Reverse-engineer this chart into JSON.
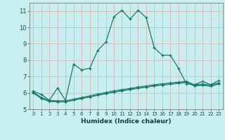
{
  "xlabel": "Humidex (Indice chaleur)",
  "background_color": "#c8eef0",
  "grid_color": "#d8b8b8",
  "line_color": "#1a7a6a",
  "x_values": [
    0,
    1,
    2,
    3,
    4,
    5,
    6,
    7,
    8,
    9,
    10,
    11,
    12,
    13,
    14,
    15,
    16,
    17,
    18,
    19,
    20,
    21,
    22,
    23
  ],
  "line1_y": [
    6.1,
    5.9,
    5.55,
    6.3,
    5.55,
    7.75,
    7.4,
    7.5,
    8.6,
    9.1,
    10.65,
    11.05,
    10.5,
    11.05,
    10.6,
    8.75,
    8.3,
    8.3,
    7.5,
    6.55,
    6.5,
    6.7,
    6.5,
    6.75
  ],
  "line2_y": [
    6.05,
    5.72,
    5.55,
    5.52,
    5.52,
    5.62,
    5.72,
    5.82,
    5.93,
    6.03,
    6.13,
    6.2,
    6.28,
    6.36,
    6.43,
    6.5,
    6.56,
    6.61,
    6.66,
    6.71,
    6.5,
    6.55,
    6.48,
    6.62
  ],
  "line3_y": [
    6.02,
    5.68,
    5.5,
    5.48,
    5.48,
    5.58,
    5.68,
    5.78,
    5.88,
    5.98,
    6.08,
    6.15,
    6.23,
    6.31,
    6.38,
    6.45,
    6.51,
    6.56,
    6.61,
    6.66,
    6.45,
    6.5,
    6.43,
    6.57
  ],
  "line4_y": [
    5.98,
    5.64,
    5.47,
    5.44,
    5.44,
    5.54,
    5.64,
    5.74,
    5.84,
    5.94,
    6.04,
    6.11,
    6.19,
    6.27,
    6.34,
    6.41,
    6.47,
    6.52,
    6.57,
    6.62,
    6.41,
    6.46,
    6.39,
    6.53
  ],
  "ylim": [
    5.0,
    11.5
  ],
  "yticks": [
    5,
    6,
    7,
    8,
    9,
    10,
    11
  ],
  "xlim": [
    -0.5,
    23.5
  ],
  "xticks": [
    0,
    1,
    2,
    3,
    4,
    5,
    6,
    7,
    8,
    9,
    10,
    11,
    12,
    13,
    14,
    15,
    16,
    17,
    18,
    19,
    20,
    21,
    22,
    23
  ]
}
